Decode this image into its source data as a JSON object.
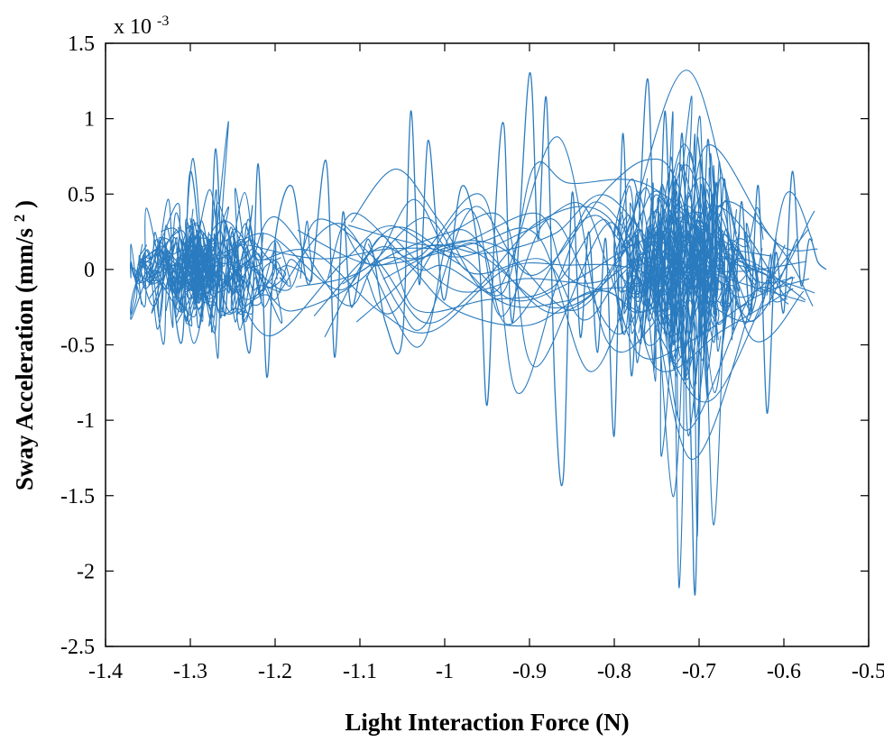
{
  "chart_data": {
    "type": "line",
    "xlabel": "Light Interaction Force (N)",
    "ylabel_main": "Sway Acceleration (mm/s",
    "ylabel_sup": "2",
    "ylabel_end": ")",
    "y_exponent_base": "x 10",
    "y_exponent_power": "-3",
    "xlim": [
      -1.4,
      -0.5
    ],
    "ylim": [
      -2.5,
      1.5
    ],
    "y_scale_note": "y values shown in units of 10^-3",
    "xticks": [
      -1.4,
      -1.3,
      -1.2,
      -1.1,
      -1.0,
      -0.9,
      -0.8,
      -0.7,
      -0.6,
      -0.5
    ],
    "xtick_labels": [
      "-1.4",
      "-1.3",
      "-1.2",
      "-1.1",
      "-1",
      "-0.9",
      "-0.8",
      "-0.7",
      "-0.6",
      "-0.5"
    ],
    "yticks": [
      -2.5,
      -2.0,
      -1.5,
      -1.0,
      -0.5,
      0.0,
      0.5,
      1.0,
      1.5
    ],
    "ytick_labels": [
      "-2.5",
      "-2",
      "-1.5",
      "-1",
      "-0.5",
      "0",
      "0.5",
      "1",
      "1.5"
    ],
    "grid": false,
    "line_color": "#2a7bbf",
    "series": [
      {
        "x": [
          -1.36,
          -1.33,
          -1.31,
          -1.3,
          -1.28,
          -1.27,
          -1.26,
          -1.25,
          -1.23,
          -1.22,
          -1.21,
          -1.2,
          -1.18,
          -1.16,
          -1.14,
          -1.13,
          -1.12,
          -1.11,
          -1.09,
          -1.07,
          -1.05,
          -1.04,
          -1.03,
          -1.02,
          -1.01,
          -1.0,
          -0.98,
          -0.96,
          -0.95,
          -0.94,
          -0.93,
          -0.92,
          -0.9,
          -0.89,
          -0.88,
          -0.87,
          -0.86,
          -0.85,
          -0.84,
          -0.83,
          -0.82,
          -0.81,
          -0.8,
          -0.79,
          -0.78,
          -0.77,
          -0.76,
          -0.75,
          -0.74,
          -0.73,
          -0.72,
          -0.71,
          -0.705,
          -0.7,
          -0.69,
          -0.68,
          -0.67,
          -0.66,
          -0.65,
          -0.64,
          -0.63,
          -0.62,
          -0.61,
          -0.6,
          -0.59,
          -0.58,
          -0.57,
          -0.56,
          -0.55
        ],
        "y": [
          0.05,
          0.1,
          -0.48,
          0.65,
          -0.2,
          0.8,
          -0.3,
          0.25,
          -0.55,
          0.7,
          -0.71,
          0.2,
          0.55,
          -0.1,
          0.72,
          -0.58,
          0.38,
          -0.25,
          0.2,
          -0.35,
          -0.46,
          1.05,
          -0.1,
          0.85,
          0.3,
          -0.2,
          0.55,
          0.1,
          -0.9,
          0.4,
          0.95,
          -0.35,
          1.3,
          0.2,
          1.13,
          -0.8,
          -1.37,
          0.5,
          -0.45,
          0.25,
          -0.55,
          0.2,
          -1.1,
          0.9,
          -0.7,
          0.4,
          1.25,
          -0.3,
          1.05,
          -0.5,
          0.9,
          -1.05,
          -2.16,
          -1.1,
          0.85,
          -0.2,
          0.6,
          -0.4,
          0.45,
          -0.3,
          0.55,
          -0.95,
          0.1,
          -0.28,
          0.65,
          -0.1,
          0.2,
          0.05,
          0.0
        ]
      }
    ]
  }
}
